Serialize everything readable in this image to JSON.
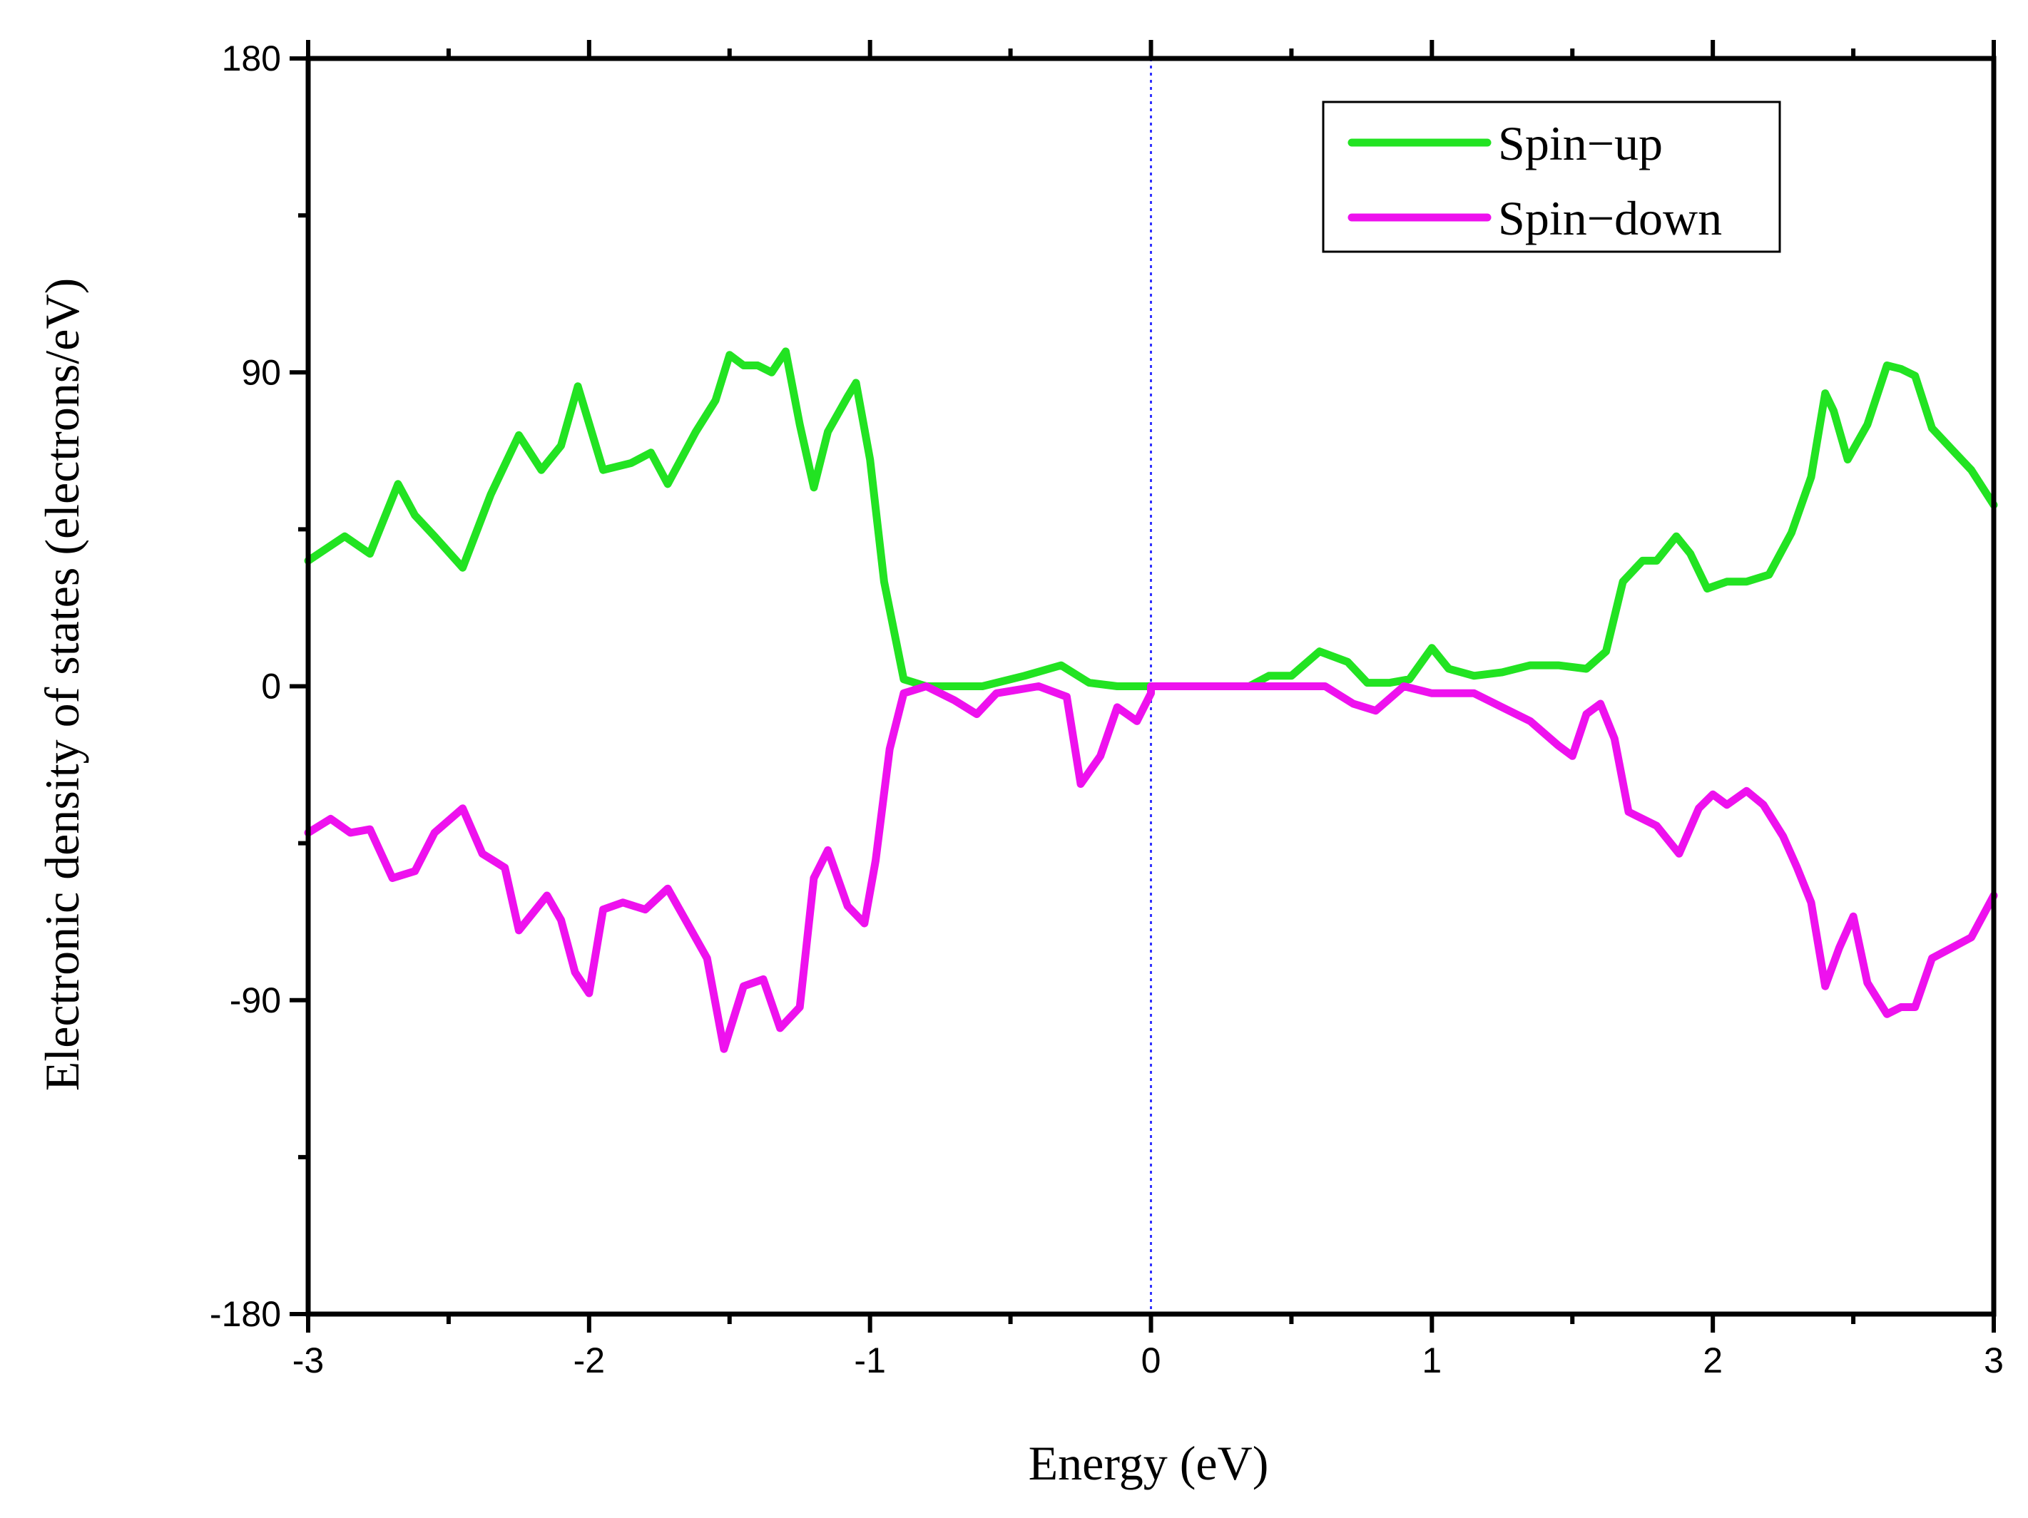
{
  "chart_data": {
    "type": "line",
    "xlabel": "Energy (eV)",
    "ylabel": "Electronic density of states (electrons/eV)",
    "xlim": [
      -3,
      3
    ],
    "ylim": [
      -180,
      180
    ],
    "xticks": [
      -3,
      -2,
      -1,
      0,
      1,
      2,
      3
    ],
    "yticks": [
      -180,
      -90,
      0,
      90,
      180
    ],
    "xtick_labels": [
      "-3",
      "-2",
      "-1",
      "0",
      "1",
      "2",
      "3"
    ],
    "ytick_labels": [
      "-180",
      "-90",
      "0",
      "90",
      "180"
    ],
    "x_minor_step": 0.5,
    "y_minor_step": 45,
    "grid": false,
    "fermi_line": {
      "x": 0,
      "color": "#3333ff",
      "style": "dotted"
    },
    "legend_position": "top-right",
    "series": [
      {
        "name": "Spin−up",
        "color": "#22e322",
        "points": [
          [
            -3.0,
            36
          ],
          [
            -2.87,
            43
          ],
          [
            -2.78,
            38
          ],
          [
            -2.68,
            58
          ],
          [
            -2.62,
            49
          ],
          [
            -2.55,
            43
          ],
          [
            -2.45,
            34
          ],
          [
            -2.35,
            55
          ],
          [
            -2.25,
            72
          ],
          [
            -2.17,
            62
          ],
          [
            -2.1,
            69
          ],
          [
            -2.04,
            86
          ],
          [
            -1.95,
            62
          ],
          [
            -1.85,
            64
          ],
          [
            -1.78,
            67
          ],
          [
            -1.72,
            58
          ],
          [
            -1.62,
            73
          ],
          [
            -1.55,
            82
          ],
          [
            -1.5,
            95
          ],
          [
            -1.45,
            92
          ],
          [
            -1.4,
            92
          ],
          [
            -1.35,
            90
          ],
          [
            -1.3,
            96
          ],
          [
            -1.25,
            75
          ],
          [
            -1.2,
            57
          ],
          [
            -1.15,
            73
          ],
          [
            -1.08,
            83
          ],
          [
            -1.05,
            87
          ],
          [
            -1.0,
            65
          ],
          [
            -0.95,
            30
          ],
          [
            -0.88,
            2
          ],
          [
            -0.8,
            0
          ],
          [
            -0.6,
            0
          ],
          [
            -0.45,
            3
          ],
          [
            -0.32,
            6
          ],
          [
            -0.22,
            1
          ],
          [
            -0.12,
            0
          ],
          [
            0.0,
            0
          ],
          [
            0.35,
            0
          ],
          [
            0.42,
            3
          ],
          [
            0.5,
            3
          ],
          [
            0.6,
            10
          ],
          [
            0.7,
            7
          ],
          [
            0.77,
            1
          ],
          [
            0.85,
            1
          ],
          [
            0.92,
            2
          ],
          [
            1.0,
            11
          ],
          [
            1.06,
            5
          ],
          [
            1.15,
            3
          ],
          [
            1.25,
            4
          ],
          [
            1.35,
            6
          ],
          [
            1.45,
            6
          ],
          [
            1.55,
            5
          ],
          [
            1.62,
            10
          ],
          [
            1.68,
            30
          ],
          [
            1.75,
            36
          ],
          [
            1.8,
            36
          ],
          [
            1.87,
            43
          ],
          [
            1.92,
            38
          ],
          [
            1.98,
            28
          ],
          [
            2.05,
            30
          ],
          [
            2.12,
            30
          ],
          [
            2.2,
            32
          ],
          [
            2.28,
            44
          ],
          [
            2.35,
            60
          ],
          [
            2.4,
            84
          ],
          [
            2.43,
            79
          ],
          [
            2.48,
            65
          ],
          [
            2.55,
            75
          ],
          [
            2.62,
            92
          ],
          [
            2.67,
            91
          ],
          [
            2.72,
            89
          ],
          [
            2.78,
            74
          ],
          [
            2.85,
            68
          ],
          [
            2.92,
            62
          ],
          [
            3.0,
            52
          ]
        ]
      },
      {
        "name": "Spin−down",
        "color": "#ee11ee",
        "points": [
          [
            -3.0,
            -42
          ],
          [
            -2.92,
            -38
          ],
          [
            -2.85,
            -42
          ],
          [
            -2.78,
            -41
          ],
          [
            -2.7,
            -55
          ],
          [
            -2.62,
            -53
          ],
          [
            -2.55,
            -42
          ],
          [
            -2.45,
            -35
          ],
          [
            -2.38,
            -48
          ],
          [
            -2.3,
            -52
          ],
          [
            -2.25,
            -70
          ],
          [
            -2.15,
            -60
          ],
          [
            -2.1,
            -67
          ],
          [
            -2.05,
            -82
          ],
          [
            -2.0,
            -88
          ],
          [
            -1.95,
            -64
          ],
          [
            -1.88,
            -62
          ],
          [
            -1.8,
            -64
          ],
          [
            -1.72,
            -58
          ],
          [
            -1.65,
            -68
          ],
          [
            -1.58,
            -78
          ],
          [
            -1.52,
            -104
          ],
          [
            -1.45,
            -86
          ],
          [
            -1.38,
            -84
          ],
          [
            -1.32,
            -98
          ],
          [
            -1.25,
            -92
          ],
          [
            -1.2,
            -55
          ],
          [
            -1.15,
            -47
          ],
          [
            -1.08,
            -63
          ],
          [
            -1.02,
            -68
          ],
          [
            -0.98,
            -50
          ],
          [
            -0.93,
            -18
          ],
          [
            -0.88,
            -2
          ],
          [
            -0.8,
            0
          ],
          [
            -0.7,
            -4
          ],
          [
            -0.62,
            -8
          ],
          [
            -0.55,
            -2
          ],
          [
            -0.4,
            0
          ],
          [
            -0.3,
            -3
          ],
          [
            -0.25,
            -28
          ],
          [
            -0.18,
            -20
          ],
          [
            -0.12,
            -6
          ],
          [
            -0.05,
            -10
          ],
          [
            0.0,
            -2
          ],
          [
            0.0,
            0
          ],
          [
            0.62,
            0
          ],
          [
            0.72,
            -5
          ],
          [
            0.8,
            -7
          ],
          [
            0.9,
            0
          ],
          [
            1.0,
            -2
          ],
          [
            1.15,
            -2
          ],
          [
            1.25,
            -6
          ],
          [
            1.35,
            -10
          ],
          [
            1.45,
            -17
          ],
          [
            1.5,
            -20
          ],
          [
            1.55,
            -8
          ],
          [
            1.6,
            -5
          ],
          [
            1.65,
            -15
          ],
          [
            1.7,
            -36
          ],
          [
            1.75,
            -38
          ],
          [
            1.8,
            -40
          ],
          [
            1.88,
            -48
          ],
          [
            1.95,
            -35
          ],
          [
            2.0,
            -31
          ],
          [
            2.05,
            -34
          ],
          [
            2.12,
            -30
          ],
          [
            2.18,
            -34
          ],
          [
            2.25,
            -43
          ],
          [
            2.3,
            -52
          ],
          [
            2.35,
            -62
          ],
          [
            2.4,
            -86
          ],
          [
            2.45,
            -75
          ],
          [
            2.5,
            -66
          ],
          [
            2.55,
            -85
          ],
          [
            2.62,
            -94
          ],
          [
            2.67,
            -92
          ],
          [
            2.72,
            -92
          ],
          [
            2.78,
            -78
          ],
          [
            2.85,
            -75
          ],
          [
            2.92,
            -72
          ],
          [
            3.0,
            -60
          ]
        ]
      }
    ]
  }
}
